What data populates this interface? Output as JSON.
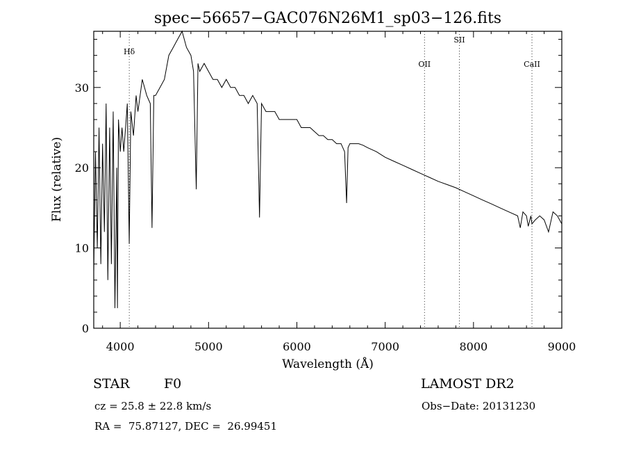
{
  "chart_data": {
    "type": "line",
    "title": "spec−56657−GAC076N26M1_sp03−126.fits",
    "xlabel": "Wavelength (Å)",
    "ylabel": "Flux (relative)",
    "xlim": [
      3700,
      9000
    ],
    "ylim": [
      0,
      37
    ],
    "xticks": [
      4000,
      5000,
      6000,
      7000,
      8000,
      9000
    ],
    "yticks": [
      0,
      10,
      20,
      30
    ],
    "grid": false,
    "series": [
      {
        "x": [
          3700,
          3720,
          3740,
          3760,
          3780,
          3800,
          3820,
          3840,
          3860,
          3880,
          3900,
          3920,
          3940,
          3960,
          3968,
          3980,
          4000,
          4020,
          4040,
          4060,
          4080,
          4102,
          4120,
          4150,
          4180,
          4200,
          4250,
          4300,
          4340,
          4360,
          4380,
          4400,
          4450,
          4500,
          4550,
          4600,
          4650,
          4700,
          4750,
          4800,
          4830,
          4861,
          4880,
          4900,
          4950,
          5000,
          5050,
          5100,
          5150,
          5200,
          5250,
          5300,
          5350,
          5400,
          5450,
          5500,
          5550,
          5577,
          5600,
          5650,
          5700,
          5750,
          5800,
          5850,
          5900,
          5950,
          6000,
          6050,
          6100,
          6150,
          6200,
          6250,
          6300,
          6350,
          6400,
          6450,
          6500,
          6540,
          6563,
          6580,
          6600,
          6650,
          6700,
          6750,
          6800,
          6900,
          7000,
          7100,
          7200,
          7300,
          7400,
          7500,
          7600,
          7700,
          7800,
          7900,
          8000,
          8100,
          8200,
          8300,
          8400,
          8500,
          8530,
          8560,
          8600,
          8620,
          8650,
          8662,
          8700,
          8750,
          8800,
          8850,
          8900,
          8950,
          9000
        ],
        "y": [
          7,
          22,
          10,
          25,
          8,
          23,
          12,
          28,
          6,
          25,
          8,
          27,
          2.5,
          20,
          2.5,
          26,
          22,
          25,
          22,
          25,
          28,
          10.5,
          27,
          24,
          29,
          27,
          31,
          29,
          28,
          12.5,
          29,
          29,
          30,
          31,
          34,
          35,
          36,
          37,
          35,
          34,
          32,
          17.3,
          33,
          32,
          33,
          32,
          31,
          31,
          30,
          31,
          30,
          30,
          29,
          29,
          28,
          29,
          28,
          13.8,
          28,
          27,
          27,
          27,
          26,
          26,
          26,
          26,
          26,
          25,
          25,
          25,
          24.5,
          24,
          24,
          23.5,
          23.5,
          23,
          23,
          22,
          15.6,
          22.5,
          23,
          23,
          23,
          22.8,
          22.5,
          22,
          21.3,
          20.8,
          20.3,
          19.8,
          19.3,
          18.8,
          18.3,
          17.9,
          17.5,
          17,
          16.5,
          16,
          15.5,
          15,
          14.5,
          14,
          12.5,
          14.5,
          14,
          12.7,
          14,
          13,
          13.5,
          14,
          13.5,
          12,
          14.5,
          14,
          13
        ]
      }
    ],
    "line_markers": [
      {
        "label": "Hδ",
        "x": 4102
      },
      {
        "label": "OII",
        "x": 7445
      },
      {
        "label": "SII",
        "x": 7840
      },
      {
        "label": "CaII",
        "x": 8662
      }
    ]
  },
  "info": {
    "object_class": "STAR",
    "subclass": "F0",
    "survey": "LAMOST DR2",
    "cz": "cz = 25.8 ± 22.8 km/s",
    "obs_date": "Obs−Date: 20131230",
    "coords": "RA =  75.87127, DEC =  26.99451"
  }
}
